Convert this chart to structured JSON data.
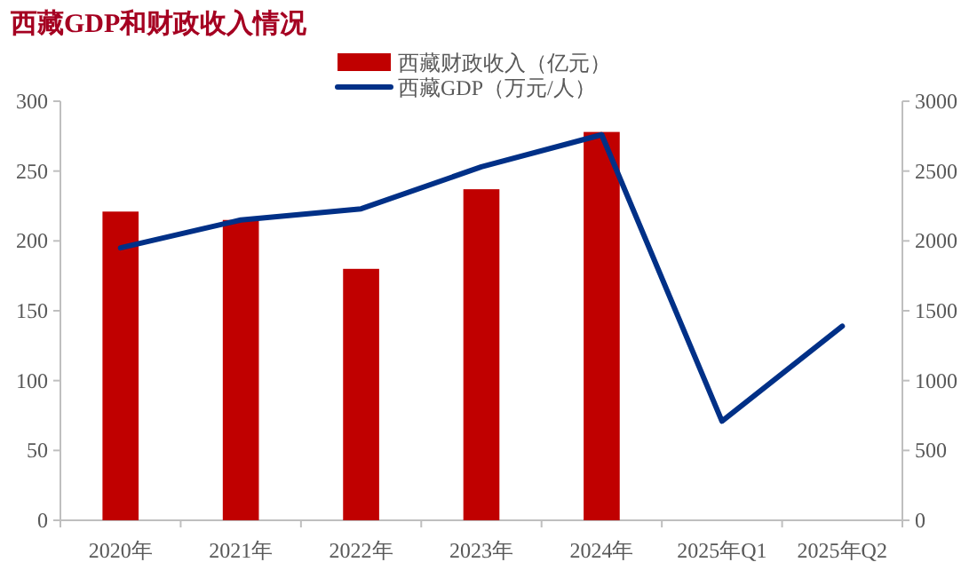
{
  "chart_data": {
    "type": "bar",
    "title": "西藏GDP和财政收入情况",
    "categories": [
      "2020年",
      "2021年",
      "2022年",
      "2023年",
      "2024年",
      "2025年Q1",
      "2025年Q2"
    ],
    "series": [
      {
        "name": "西藏财政收入（亿元）",
        "color": "#c00000",
        "values": [
          221,
          215,
          180,
          237,
          278,
          null,
          null
        ]
      },
      {
        "name": "西藏GDP（万元/人）",
        "type": "line",
        "axis": "y2",
        "color": "#003087",
        "values": [
          1950,
          2150,
          2230,
          2530,
          2760,
          710,
          1390
        ]
      }
    ],
    "ylim": [
      0,
      300
    ],
    "yticks": [
      0,
      50,
      100,
      150,
      200,
      250,
      300
    ],
    "y2lim": [
      0,
      3000
    ],
    "y2ticks": [
      0,
      500,
      1000,
      1500,
      2000,
      2500,
      3000
    ],
    "grid": false,
    "legend": "top",
    "marker": "none"
  }
}
